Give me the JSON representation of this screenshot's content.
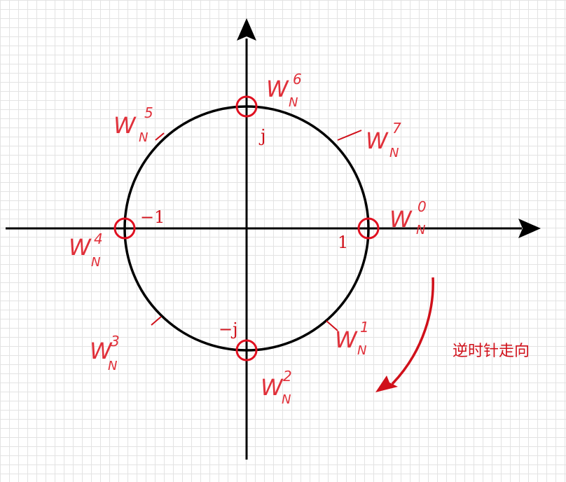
{
  "diagram": {
    "axis_labels": {
      "pos_one": "1",
      "neg_one": "−1",
      "pos_j": "j",
      "neg_j": "−j"
    },
    "twiddle": {
      "base": "W",
      "subscript": "N",
      "exponents": [
        "0",
        "1",
        "2",
        "3",
        "4",
        "5",
        "6",
        "7"
      ]
    },
    "direction_note": "逆时针走向",
    "colors": {
      "ink": "#000000",
      "accent": "#d0101a",
      "handwriting": "#e0303a"
    }
  }
}
